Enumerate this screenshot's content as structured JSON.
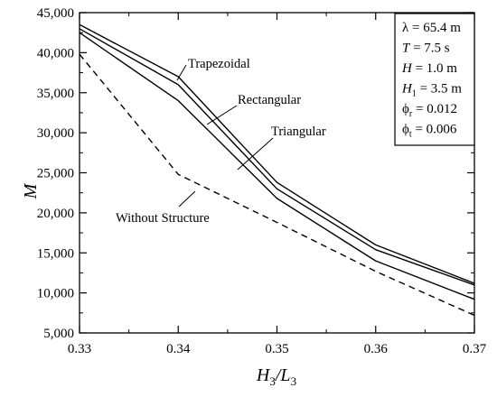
{
  "chart_data": {
    "type": "line",
    "title": "",
    "xlabel": {
      "main": "H",
      "sub1": "3",
      "slash": "/L",
      "sub2": "3"
    },
    "ylabel": "M",
    "xlim": [
      0.33,
      0.37
    ],
    "ylim": [
      5000,
      45000
    ],
    "x_ticks": [
      0.33,
      0.34,
      0.35,
      0.36,
      0.37
    ],
    "x_tick_labels": [
      "0.33",
      "0.34",
      "0.35",
      "0.36",
      "0.37"
    ],
    "y_ticks": [
      5000,
      10000,
      15000,
      20000,
      25000,
      30000,
      35000,
      40000,
      45000
    ],
    "y_tick_labels": [
      "5,000",
      "10,000",
      "15,000",
      "20,000",
      "25,000",
      "30,000",
      "35,000",
      "40,000",
      "45,000"
    ],
    "grid": false,
    "x": [
      0.33,
      0.34,
      0.35,
      0.36,
      0.37
    ],
    "series": [
      {
        "name": "Trapezoidal",
        "values": [
          43500,
          37000,
          23800,
          16000,
          11200
        ],
        "style": "solid"
      },
      {
        "name": "Rectangular",
        "values": [
          43000,
          36000,
          23000,
          15400,
          11000
        ],
        "style": "solid"
      },
      {
        "name": "Triangular",
        "values": [
          42500,
          34000,
          21800,
          14000,
          9200
        ],
        "style": "solid"
      },
      {
        "name": "Without Structure",
        "values": [
          39800,
          24800,
          18800,
          12700,
          7200
        ],
        "style": "dashed"
      }
    ],
    "params": [
      {
        "sym": "λ",
        "sub": "",
        "italic": false,
        "value": " = 65.4 m"
      },
      {
        "sym": "T",
        "sub": "",
        "italic": true,
        "value": " = 7.5 s"
      },
      {
        "sym": "H",
        "sub": "",
        "italic": true,
        "value": " = 1.0 m"
      },
      {
        "sym": "H",
        "sub": "1",
        "italic": true,
        "value": " = 3.5 m"
      },
      {
        "sym": "ϕ",
        "sub": "r",
        "italic": false,
        "value": " = 0.012"
      },
      {
        "sym": "ϕ",
        "sub": "t",
        "italic": false,
        "value": " = 0.006"
      }
    ]
  }
}
